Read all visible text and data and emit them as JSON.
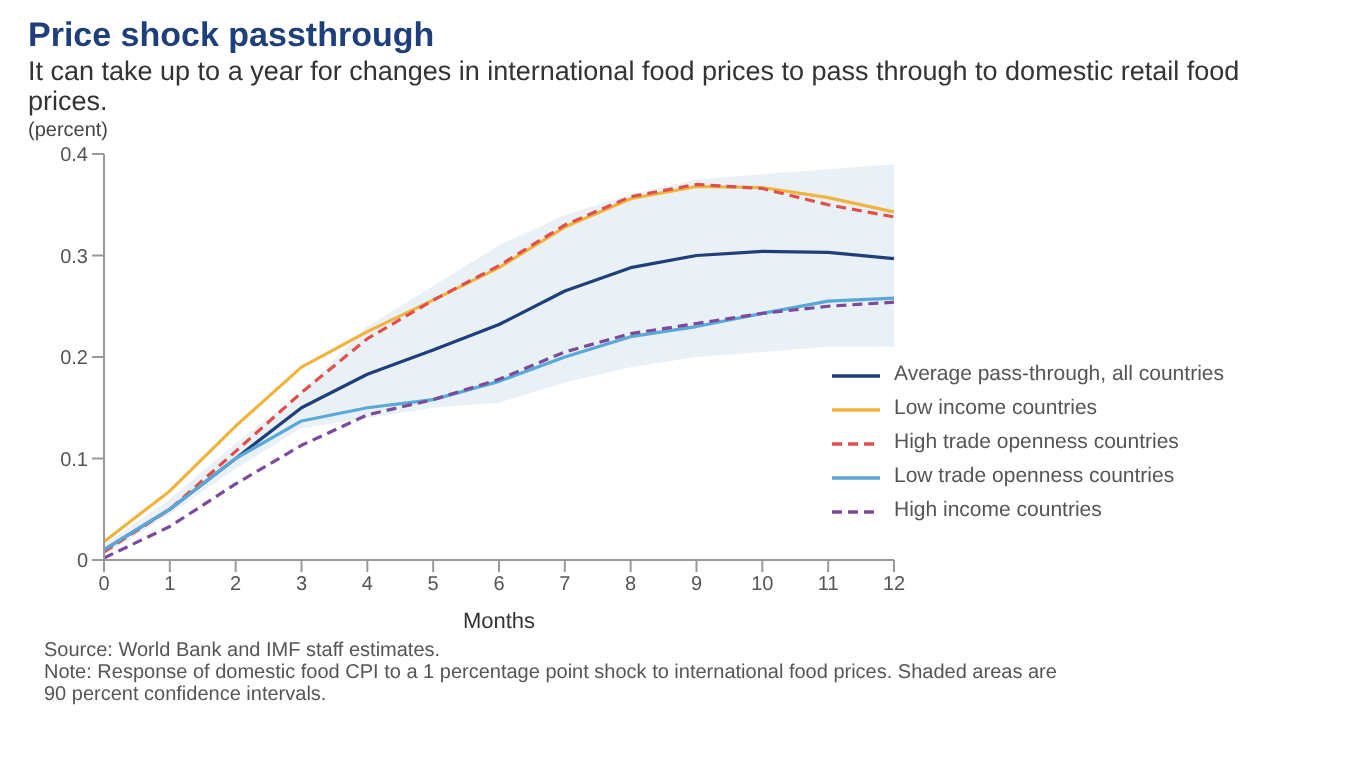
{
  "chart_data": {
    "type": "line",
    "title": "Price shock passthrough",
    "subtitle": "It can take up to a year for changes in international food prices to pass through to domestic retail food prices.",
    "ylabel": "(percent)",
    "xlabel": "Months",
    "x": [
      0,
      1,
      2,
      3,
      4,
      5,
      6,
      7,
      8,
      9,
      10,
      11,
      12
    ],
    "xlim": [
      0,
      12
    ],
    "xticks": [
      0,
      1,
      2,
      3,
      4,
      5,
      6,
      7,
      8,
      9,
      10,
      11,
      12
    ],
    "ylim": [
      0,
      0.4
    ],
    "yticks": [
      {
        "value": 0,
        "label": "0"
      },
      0.1,
      0.2,
      0.3,
      0.4
    ],
    "grid": false,
    "legend": "bottom right",
    "series": [
      {
        "name": "Average pass-through, all countries",
        "color": "#1f3f7a",
        "line_style": "solid",
        "values": [
          0.01,
          0.05,
          0.1,
          0.15,
          0.183,
          0.207,
          0.232,
          0.265,
          0.288,
          0.3,
          0.304,
          0.303,
          0.297
        ],
        "lower": [
          0.005,
          0.045,
          0.09,
          0.13,
          0.14,
          0.15,
          0.155,
          0.175,
          0.19,
          0.2,
          0.205,
          0.21,
          0.21
        ],
        "upper": [
          0.015,
          0.06,
          0.115,
          0.165,
          0.23,
          0.27,
          0.31,
          0.34,
          0.36,
          0.375,
          0.38,
          0.385,
          0.39
        ]
      },
      {
        "name": "Low income countries",
        "color": "#f0b43c",
        "line_style": "solid",
        "values": [
          0.018,
          0.068,
          0.132,
          0.19,
          0.225,
          0.256,
          0.288,
          0.328,
          0.356,
          0.368,
          0.367,
          0.357,
          0.343
        ]
      },
      {
        "name": "High trade openness countries",
        "color": "#e0504a",
        "line_style": "dashed",
        "values": [
          0.008,
          0.05,
          0.107,
          0.165,
          0.218,
          0.256,
          0.29,
          0.33,
          0.358,
          0.37,
          0.366,
          0.35,
          0.338
        ]
      },
      {
        "name": "Low trade openness countries",
        "color": "#5aa8d8",
        "line_style": "solid",
        "values": [
          0.01,
          0.05,
          0.1,
          0.137,
          0.15,
          0.158,
          0.176,
          0.2,
          0.22,
          0.23,
          0.243,
          0.255,
          0.258
        ]
      },
      {
        "name": "High income countries",
        "color": "#7b4a9a",
        "line_style": "dashed",
        "values": [
          0.002,
          0.033,
          0.075,
          0.113,
          0.143,
          0.158,
          0.178,
          0.205,
          0.223,
          0.233,
          0.243,
          0.25,
          0.254
        ]
      }
    ],
    "annotations": [
      "Source: World Bank and IMF staff estimates.",
      "Note: Response of domestic food CPI to a 1 percentage point shock to international food prices. Shaded areas are 90 percent confidence intervals."
    ]
  }
}
